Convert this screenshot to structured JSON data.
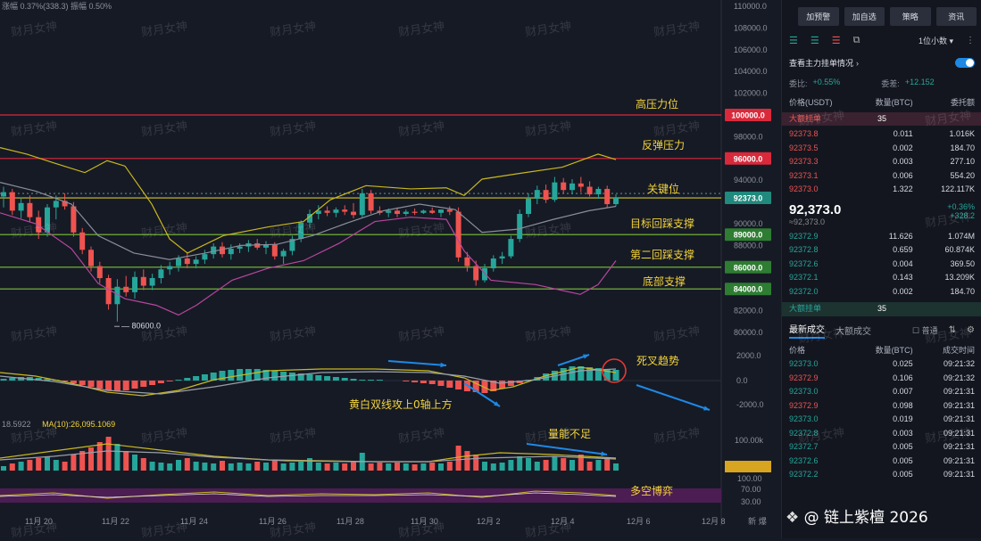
{
  "chart": {
    "top_stats": "涨幅 0.37%(338.3)  振幅 0.50%",
    "y_axis_ticks": [
      "110000.0",
      "108000.0",
      "106000.0",
      "104000.0",
      "102000.0",
      "98000.0",
      "94000.0",
      "90000.0",
      "88000.0",
      "82000.0",
      "80000.0"
    ],
    "level_labels": {
      "high_pressure": "100000.0",
      "rebound_pressure": "96000.0",
      "key_level": "92373.0",
      "target_support": "89000.0",
      "second_support": "86000.0",
      "bottom_support": "84000.0"
    },
    "low_marker": "80600.0",
    "macd_ticks": [
      "2000.0",
      "0.0",
      "-2000.0"
    ],
    "vol_ticks": [
      "100.00k",
      "2.8k",
      "100.00",
      "70.00",
      "30.00"
    ],
    "ma_label": "MA(10):26,095.1069",
    "ma_prefix": "18.5922",
    "x_ticks": [
      "11月 20",
      "11月 22",
      "11月 24",
      "11月 26",
      "11月 28",
      "11月 30",
      "12月 2",
      "12月 4",
      "12月 6",
      "12月 8"
    ],
    "axis_corner": "新 爆",
    "annotations": {
      "high_pressure": "高压力位",
      "rebound_pressure": "反弹压力",
      "key_level": "关键位",
      "target_support": "目标回踩支撑",
      "second_support": "第二回踩支撑",
      "bottom_support": "底部支撑",
      "death_cross": "死叉趋势",
      "macd_note": "黄白双线攻上0轴上方",
      "volume_note": "量能不足",
      "rsi_note": "多空博弈"
    },
    "watermark": "财月女神",
    "credit": "@ 链上紫檀 2026"
  },
  "panel": {
    "buttons": [
      "加预警",
      "加自选",
      "策略",
      "资讯"
    ],
    "precision": "1位小数",
    "whale_toggle_label": "查看主力挂单情况",
    "ratio_label": "委比:",
    "ratio_value": "+0.55%",
    "diff_label": "委差:",
    "diff_value": "+12.152",
    "book_headers": [
      "价格(USDT)",
      "数量(BTC)",
      "委托额"
    ],
    "big_order_badge": "大额挂单",
    "big_order_count": "35",
    "asks": [
      [
        "92373.8",
        "0.011",
        "1.016K"
      ],
      [
        "92373.5",
        "0.002",
        "184.70"
      ],
      [
        "92373.3",
        "0.003",
        "277.10"
      ],
      [
        "92373.1",
        "0.006",
        "554.20"
      ],
      [
        "92373.0",
        "1.322",
        "122.117K"
      ]
    ],
    "last_price": "92,373.0",
    "last_price_sub": "≈92,373.0",
    "change_pct": "+0.36%",
    "change_abs": "+328.2",
    "bids": [
      [
        "92372.9",
        "11.626",
        "1.074M"
      ],
      [
        "92372.8",
        "0.659",
        "60.874K"
      ],
      [
        "92372.6",
        "0.004",
        "369.50"
      ],
      [
        "92372.1",
        "0.143",
        "13.209K"
      ],
      [
        "92372.0",
        "0.002",
        "184.70"
      ]
    ],
    "trade_tabs": [
      "最新成交",
      "大额成交"
    ],
    "trade_filter": "普通",
    "trade_headers": [
      "价格",
      "数量(BTC)",
      "成交时间"
    ],
    "trades": [
      [
        "92373.0",
        "0.025",
        "09:21:32",
        "green"
      ],
      [
        "92372.9",
        "0.106",
        "09:21:32",
        "red"
      ],
      [
        "92373.0",
        "0.007",
        "09:21:31",
        "green"
      ],
      [
        "92372.9",
        "0.098",
        "09:21:31",
        "red"
      ],
      [
        "92373.0",
        "0.019",
        "09:21:31",
        "green"
      ],
      [
        "92372.8",
        "0.003",
        "09:21:31",
        "green"
      ],
      [
        "92372.7",
        "0.005",
        "09:21:31",
        "green"
      ],
      [
        "92372.6",
        "0.005",
        "09:21:31",
        "green"
      ],
      [
        "92372.2",
        "0.005",
        "09:21:31",
        "green"
      ]
    ],
    "colors": {
      "up": "#26a69a",
      "down": "#ef5350",
      "accent": "#1e88e5",
      "annotation": "#f3d33a"
    }
  }
}
